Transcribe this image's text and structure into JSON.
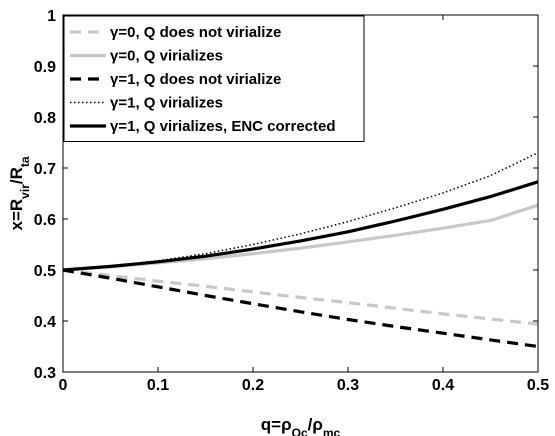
{
  "chart_data": {
    "type": "line",
    "x_axis": {
      "label_main": "q=ρ",
      "label_sub1": "Qc",
      "label_mid": "/ρ",
      "label_sub2": "mc",
      "xlim": [
        0,
        0.5
      ],
      "ticks": [
        0,
        0.1,
        0.2,
        0.3,
        0.4,
        0.5
      ],
      "tick_labels": [
        "0",
        "0.1",
        "0.2",
        "0.3",
        "0.4",
        "0.5"
      ]
    },
    "y_axis": {
      "label_main": "x=R",
      "label_sub1": "vir",
      "label_mid": "/R",
      "label_sub2": "ta",
      "ylim": [
        0.3,
        1.0
      ],
      "ticks": [
        0.3,
        0.4,
        0.5,
        0.6,
        0.7,
        0.8,
        0.9,
        1.0
      ],
      "tick_labels": [
        "0.3",
        "0.4",
        "0.5",
        "0.6",
        "0.7",
        "0.8",
        "0.9",
        "1"
      ]
    },
    "grid": false,
    "legend_position": "top-left",
    "x": [
      0,
      0.05,
      0.1,
      0.15,
      0.2,
      0.25,
      0.3,
      0.35,
      0.4,
      0.45,
      0.5
    ],
    "series": [
      {
        "name": "γ=0, Q does not virialize",
        "color": "#c8c8c8",
        "dash": "dashed",
        "values": [
          0.5,
          0.489,
          0.478,
          0.468,
          0.457,
          0.446,
          0.436,
          0.425,
          0.414,
          0.404,
          0.394
        ]
      },
      {
        "name": "γ=0, Q virializes",
        "color": "#c8c8c8",
        "dash": "solid",
        "values": [
          0.5,
          0.506,
          0.514,
          0.522,
          0.532,
          0.543,
          0.555,
          0.568,
          0.582,
          0.597,
          0.627
        ]
      },
      {
        "name": "γ=1, Q does not virialize",
        "color": "#000000",
        "dash": "dashed",
        "values": [
          0.5,
          0.484,
          0.467,
          0.45,
          0.434,
          0.418,
          0.403,
          0.389,
          0.376,
          0.363,
          0.35
        ]
      },
      {
        "name": "γ=1, Q virializes",
        "color": "#000000",
        "dash": "dotted",
        "values": [
          0.5,
          0.508,
          0.518,
          0.532,
          0.55,
          0.571,
          0.595,
          0.622,
          0.651,
          0.685,
          0.73
        ]
      },
      {
        "name": "γ=1, Q virializes, ENC corrected",
        "color": "#000000",
        "dash": "solid",
        "values": [
          0.5,
          0.507,
          0.516,
          0.527,
          0.541,
          0.557,
          0.575,
          0.596,
          0.619,
          0.644,
          0.673
        ]
      }
    ]
  }
}
